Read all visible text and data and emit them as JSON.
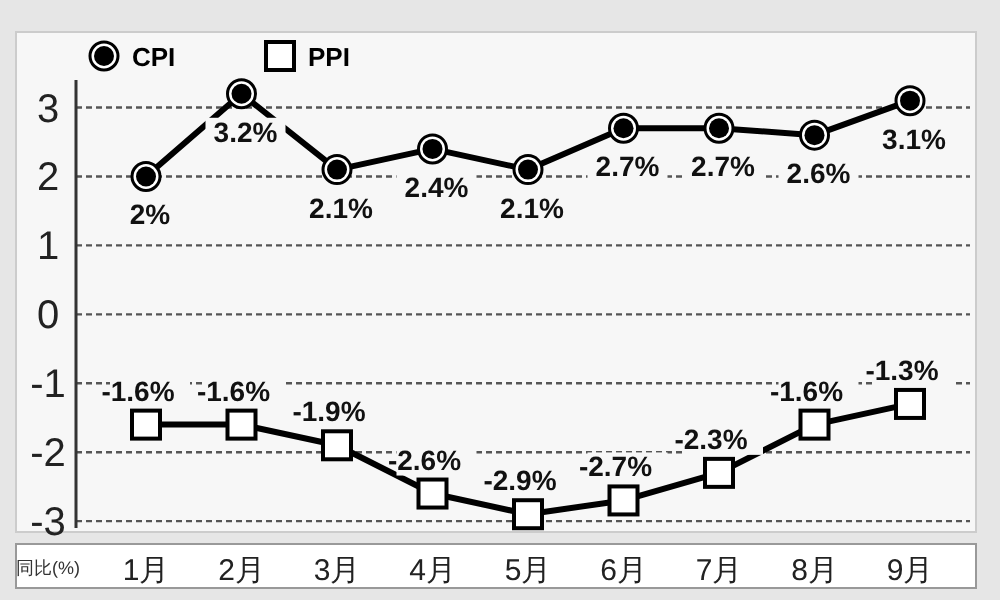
{
  "chart_data": {
    "type": "line",
    "ylabel": "同比(%)",
    "categories": [
      "1月",
      "2月",
      "3月",
      "4月",
      "5月",
      "6月",
      "7月",
      "8月",
      "9月"
    ],
    "ylim": [
      -3.1,
      3.4
    ],
    "yticks": [
      -3,
      -2,
      -1,
      0,
      1,
      2,
      3
    ],
    "grid": "y",
    "legend": "top left",
    "line_style": "solid",
    "series": [
      {
        "name": "CPI",
        "color": "#000000",
        "marker": "circle",
        "values": [
          2,
          3.2,
          2.1,
          2.4,
          2.1,
          2.7,
          2.7,
          2.6,
          3.1
        ],
        "value_labels": [
          "2%",
          "3.2%",
          "2.1%",
          "2.4%",
          "2.1%",
          "2.7%",
          "2.7%",
          "2.6%",
          "3.1%"
        ]
      },
      {
        "name": "PPI",
        "color": "#000000",
        "marker": "square",
        "values": [
          -1.6,
          -1.6,
          -1.9,
          -2.6,
          -2.9,
          -2.7,
          -2.3,
          -1.6,
          -1.3
        ],
        "value_labels": [
          "-1.6%",
          "-1.6%",
          "-1.9%",
          "-2.6%",
          "-2.9%",
          "-2.7%",
          "-2.3%",
          "-1.6%",
          "-1.3%"
        ]
      }
    ]
  }
}
